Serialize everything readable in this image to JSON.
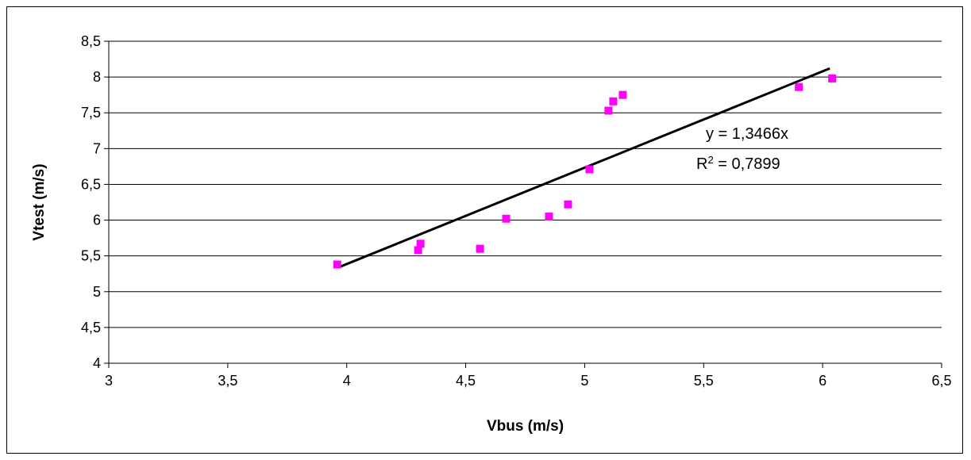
{
  "chart_data": {
    "type": "scatter",
    "title": "",
    "xlabel": "Vbus (m/s)",
    "ylabel": "Vtest (m/s)",
    "xlim": [
      3,
      6.5
    ],
    "ylim": [
      4,
      8.5
    ],
    "x_ticks": [
      "3",
      "3,5",
      "4",
      "4,5",
      "5",
      "5,5",
      "6",
      "6,5"
    ],
    "y_ticks": [
      "4",
      "4,5",
      "5",
      "5,5",
      "6",
      "6,5",
      "7",
      "7,5",
      "8",
      "8,5"
    ],
    "grid": "horizontal",
    "marker_color": "#FF00FF",
    "trendline_color": "#000000",
    "series": [
      {
        "x": [
          3.96,
          4.3,
          4.31,
          4.56,
          4.67,
          4.85,
          4.93,
          5.02,
          5.1,
          5.12,
          5.16,
          5.9,
          6.04
        ],
        "y": [
          5.38,
          5.58,
          5.67,
          5.6,
          6.02,
          6.05,
          6.22,
          6.71,
          7.53,
          7.66,
          7.75,
          7.86,
          7.98
        ]
      }
    ],
    "trendline": {
      "slope": 1.3466,
      "x_range": [
        3.97,
        6.03
      ],
      "equation_label": "y = 1,3466x",
      "r2_prefix": "R",
      "r2_sup": "2",
      "r2_suffix": " = 0,7899"
    }
  }
}
